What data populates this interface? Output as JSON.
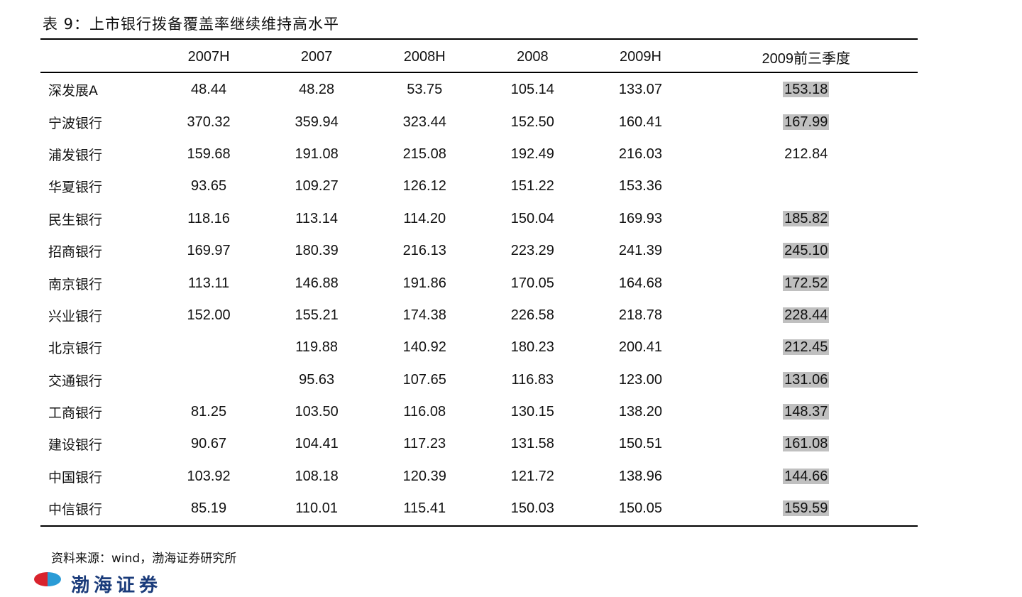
{
  "title": "表 9：上市银行拨备覆盖率继续维持高水平",
  "table": {
    "headers": [
      "",
      "2007H",
      "2007",
      "2008H",
      "2008",
      "2009H",
      "2009前三季度"
    ],
    "rows": [
      [
        "深发展A",
        "48.44",
        "48.28",
        "53.75",
        "105.14",
        "133.07",
        "153.18"
      ],
      [
        "宁波银行",
        "370.32",
        "359.94",
        "323.44",
        "152.50",
        "160.41",
        "167.99"
      ],
      [
        "浦发银行",
        "159.68",
        "191.08",
        "215.08",
        "192.49",
        "216.03",
        "212.84"
      ],
      [
        "华夏银行",
        "93.65",
        "109.27",
        "126.12",
        "151.22",
        "153.36",
        ""
      ],
      [
        "民生银行",
        "118.16",
        "113.14",
        "114.20",
        "150.04",
        "169.93",
        "185.82"
      ],
      [
        "招商银行",
        "169.97",
        "180.39",
        "216.13",
        "223.29",
        "241.39",
        "245.10"
      ],
      [
        "南京银行",
        "113.11",
        "146.88",
        "191.86",
        "170.05",
        "164.68",
        "172.52"
      ],
      [
        "兴业银行",
        "152.00",
        "155.21",
        "174.38",
        "226.58",
        "218.78",
        "228.44"
      ],
      [
        "北京银行",
        "",
        "119.88",
        "140.92",
        "180.23",
        "200.41",
        "212.45"
      ],
      [
        "交通银行",
        "",
        "95.63",
        "107.65",
        "116.83",
        "123.00",
        "131.06"
      ],
      [
        "工商银行",
        "81.25",
        "103.50",
        "116.08",
        "130.15",
        "138.20",
        "148.37"
      ],
      [
        "建设银行",
        "90.67",
        "104.41",
        "117.23",
        "131.58",
        "150.51",
        "161.08"
      ],
      [
        "中国银行",
        "103.92",
        "108.18",
        "120.39",
        "121.72",
        "138.96",
        "144.66"
      ],
      [
        "中信银行",
        "85.19",
        "110.01",
        "115.41",
        "150.03",
        "150.05",
        "159.59"
      ]
    ],
    "highlight_color": "#c0c0c0",
    "highlighted_last_column_rows": [
      0,
      1,
      4,
      5,
      6,
      7,
      8,
      9,
      10,
      11,
      12,
      13
    ]
  },
  "source": "资料来源：wind，渤海证券研究所",
  "logo_text": "渤海证券"
}
